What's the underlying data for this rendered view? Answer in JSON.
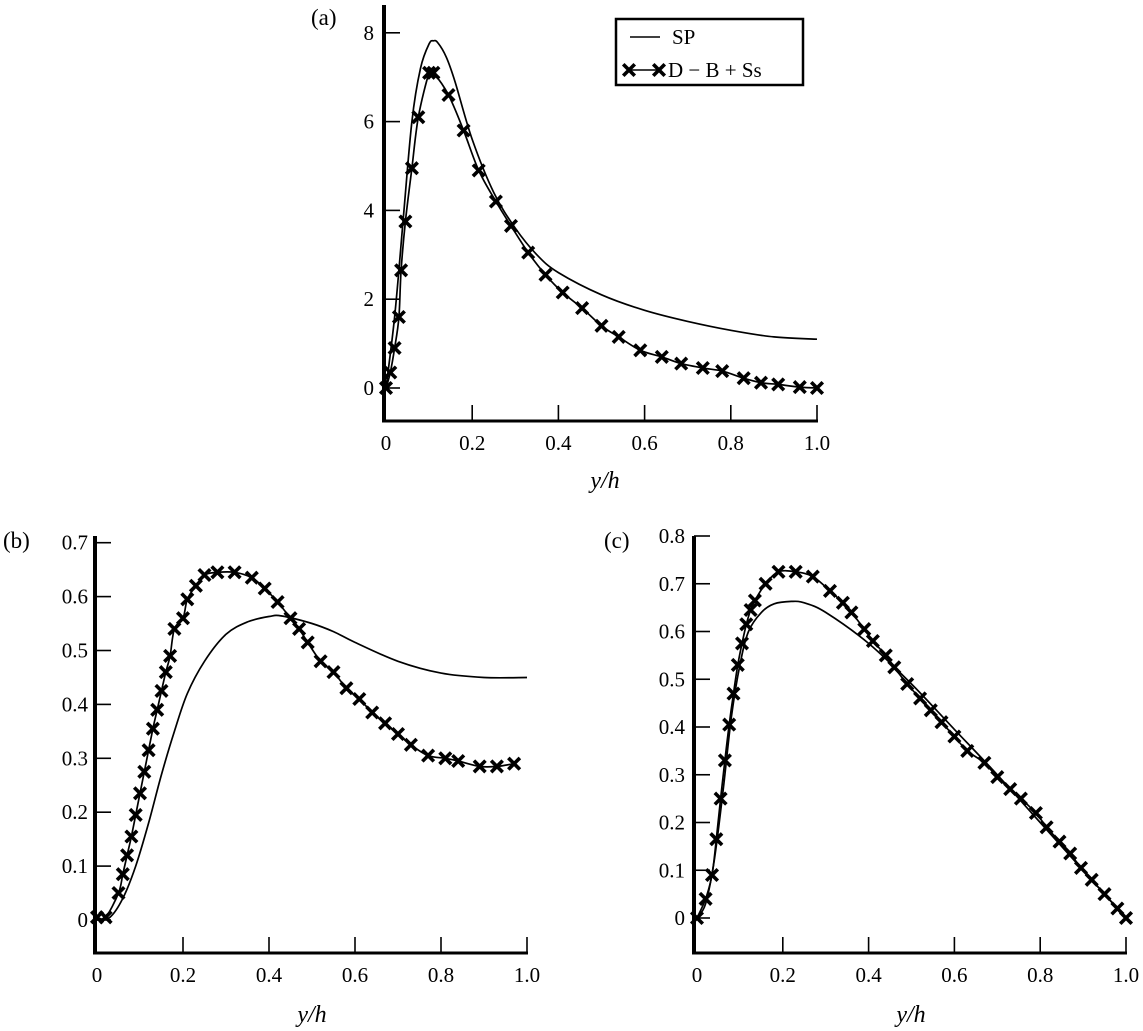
{
  "figure": {
    "legend": {
      "entries": [
        {
          "label": "SP",
          "style": "solid-line"
        },
        {
          "label": "D − B + Ss",
          "style": "line-with-x-markers"
        }
      ]
    }
  },
  "chart_data": [
    {
      "panel": "(a)",
      "type": "line",
      "title": "",
      "xlabel": "y/h",
      "ylabel": "",
      "xlim": [
        0,
        1.0
      ],
      "ylim": [
        -0.7,
        8.6
      ],
      "xticks": [
        "0",
        "0.2",
        "0.4",
        "0.6",
        "0.8",
        "1.0"
      ],
      "yticks": [
        "0",
        "2",
        "4",
        "6",
        "8"
      ],
      "grid": false,
      "legend_position": "upper right",
      "series": [
        {
          "name": "SP",
          "marker": "none",
          "x": [
            0,
            0.02,
            0.04,
            0.06,
            0.08,
            0.1,
            0.11,
            0.12,
            0.14,
            0.16,
            0.2,
            0.25,
            0.3,
            0.35,
            0.4,
            0.5,
            0.6,
            0.7,
            0.8,
            0.9,
            1.0
          ],
          "y": [
            0,
            1.6,
            3.8,
            6.0,
            7.2,
            7.75,
            7.82,
            7.78,
            7.45,
            6.9,
            5.6,
            4.4,
            3.6,
            3.0,
            2.6,
            2.1,
            1.75,
            1.5,
            1.3,
            1.15,
            1.1
          ]
        },
        {
          "name": "D − B + Ss",
          "marker": "x",
          "x": [
            0,
            0.01,
            0.02,
            0.03,
            0.035,
            0.045,
            0.06,
            0.075,
            0.1,
            0.11,
            0.145,
            0.18,
            0.215,
            0.255,
            0.29,
            0.33,
            0.37,
            0.41,
            0.455,
            0.5,
            0.54,
            0.59,
            0.64,
            0.685,
            0.735,
            0.78,
            0.83,
            0.87,
            0.91,
            0.96,
            1.0
          ],
          "y": [
            0,
            0.35,
            0.9,
            1.6,
            2.65,
            3.75,
            4.95,
            6.1,
            7.1,
            7.1,
            6.6,
            5.8,
            4.9,
            4.2,
            3.65,
            3.05,
            2.55,
            2.15,
            1.8,
            1.4,
            1.15,
            0.85,
            0.7,
            0.55,
            0.45,
            0.38,
            0.22,
            0.12,
            0.08,
            0.02,
            0.0
          ]
        }
      ]
    },
    {
      "panel": "(b)",
      "type": "line",
      "title": "",
      "xlabel": "y/h",
      "ylabel": "",
      "xlim": [
        0,
        1.0
      ],
      "ylim": [
        -0.06,
        0.72
      ],
      "xticks": [
        "0",
        "0.2",
        "0.4",
        "0.6",
        "0.8",
        "1.0"
      ],
      "yticks": [
        "0",
        "0.1",
        "0.2",
        "0.3",
        "0.4",
        "0.5",
        "0.6",
        "0.7"
      ],
      "grid": false,
      "series": [
        {
          "name": "SP",
          "marker": "none",
          "x": [
            0,
            0.03,
            0.06,
            0.09,
            0.12,
            0.15,
            0.18,
            0.21,
            0.25,
            0.3,
            0.35,
            0.4,
            0.43,
            0.5,
            0.55,
            0.6,
            0.7,
            0.8,
            0.9,
            1.0
          ],
          "y": [
            0,
            0.005,
            0.04,
            0.1,
            0.18,
            0.27,
            0.35,
            0.42,
            0.48,
            0.53,
            0.553,
            0.563,
            0.564,
            0.55,
            0.535,
            0.515,
            0.48,
            0.458,
            0.45,
            0.45
          ]
        },
        {
          "name": "D − B + Ss",
          "marker": "x",
          "x": [
            0.0,
            0.02,
            0.05,
            0.06,
            0.07,
            0.08,
            0.09,
            0.1,
            0.11,
            0.12,
            0.13,
            0.14,
            0.15,
            0.16,
            0.17,
            0.18,
            0.2,
            0.21,
            0.23,
            0.25,
            0.28,
            0.32,
            0.36,
            0.39,
            0.42,
            0.45,
            0.47,
            0.49,
            0.52,
            0.55,
            0.58,
            0.61,
            0.64,
            0.67,
            0.7,
            0.73,
            0.77,
            0.81,
            0.84,
            0.89,
            0.93,
            0.97
          ],
          "y": [
            0.005,
            0.005,
            0.05,
            0.085,
            0.12,
            0.155,
            0.195,
            0.235,
            0.275,
            0.315,
            0.355,
            0.39,
            0.425,
            0.46,
            0.49,
            0.54,
            0.56,
            0.595,
            0.62,
            0.64,
            0.645,
            0.645,
            0.635,
            0.615,
            0.59,
            0.56,
            0.54,
            0.515,
            0.48,
            0.46,
            0.43,
            0.41,
            0.385,
            0.365,
            0.345,
            0.325,
            0.305,
            0.3,
            0.295,
            0.285,
            0.285,
            0.29
          ]
        }
      ]
    },
    {
      "panel": "(c)",
      "type": "line",
      "title": "",
      "xlabel": "y/h",
      "ylabel": "",
      "xlim": [
        0,
        1.0
      ],
      "ylim": [
        -0.07,
        0.8
      ],
      "xticks": [
        "0",
        "0.2",
        "0.4",
        "0.6",
        "0.8",
        "1.0"
      ],
      "yticks": [
        "0",
        "0.1",
        "0.2",
        "0.3",
        "0.4",
        "0.5",
        "0.6",
        "0.7",
        "0.8"
      ],
      "grid": false,
      "series": [
        {
          "name": "SP",
          "marker": "none",
          "x": [
            0,
            0.02,
            0.04,
            0.06,
            0.08,
            0.1,
            0.12,
            0.15,
            0.18,
            0.22,
            0.25,
            0.3,
            0.4,
            0.5,
            0.6,
            0.7,
            0.8,
            0.9,
            0.95,
            1.0
          ],
          "y": [
            0,
            0.03,
            0.12,
            0.26,
            0.42,
            0.53,
            0.6,
            0.64,
            0.658,
            0.663,
            0.66,
            0.64,
            0.575,
            0.49,
            0.395,
            0.3,
            0.2,
            0.1,
            0.05,
            0.0
          ]
        },
        {
          "name": "D − B + Ss",
          "marker": "x",
          "x": [
            0.0,
            0.02,
            0.035,
            0.045,
            0.055,
            0.065,
            0.075,
            0.085,
            0.095,
            0.105,
            0.115,
            0.125,
            0.135,
            0.16,
            0.19,
            0.23,
            0.27,
            0.31,
            0.34,
            0.36,
            0.39,
            0.41,
            0.44,
            0.46,
            0.49,
            0.52,
            0.545,
            0.57,
            0.6,
            0.63,
            0.67,
            0.7,
            0.73,
            0.755,
            0.79,
            0.815,
            0.845,
            0.87,
            0.895,
            0.92,
            0.95,
            0.98,
            1.0
          ],
          "y": [
            0.0,
            0.04,
            0.09,
            0.165,
            0.25,
            0.33,
            0.405,
            0.47,
            0.53,
            0.575,
            0.615,
            0.645,
            0.665,
            0.7,
            0.725,
            0.725,
            0.715,
            0.685,
            0.66,
            0.64,
            0.605,
            0.58,
            0.55,
            0.525,
            0.49,
            0.46,
            0.435,
            0.41,
            0.38,
            0.35,
            0.325,
            0.295,
            0.27,
            0.25,
            0.22,
            0.19,
            0.16,
            0.135,
            0.105,
            0.08,
            0.05,
            0.02,
            0.0
          ]
        }
      ]
    }
  ]
}
